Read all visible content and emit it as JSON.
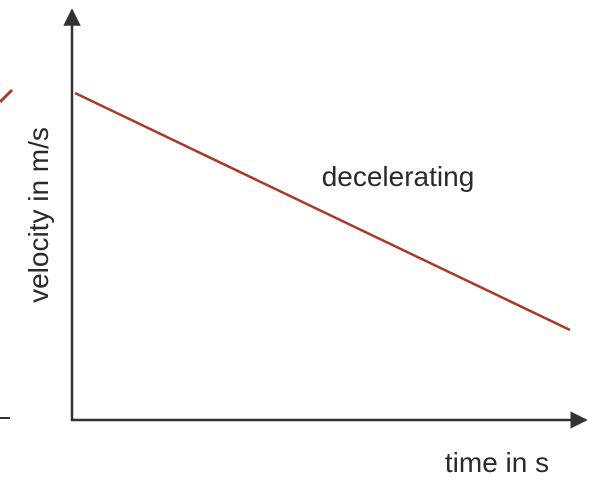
{
  "axes": {
    "y_label": "velocity in m/s",
    "x_label": "time in s"
  },
  "annotation": "decelerating"
}
